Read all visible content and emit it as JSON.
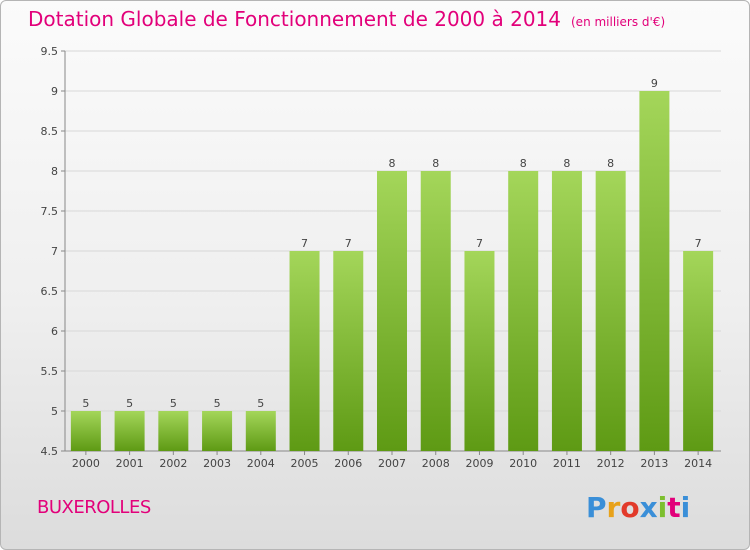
{
  "title": "Dotation Globale de Fonctionnement de 2000 à 2014",
  "unit": "(en milliers d'€)",
  "commune": "BUXEROLLES",
  "logo": {
    "text": "Proxiti",
    "letters": [
      "P",
      "r",
      "o",
      "x",
      "i",
      "t",
      "i"
    ],
    "colors": [
      "#3a8fd8",
      "#e8a21a",
      "#e23a2a",
      "#3a8fd8",
      "#7cbf2e",
      "#e2007a",
      "#3a8fd8"
    ]
  },
  "colors": {
    "title": "#e2007a",
    "bar_top": "#a4d65a",
    "bar_bottom": "#5e9a14",
    "grid": "#d8d8d8"
  },
  "chart_data": {
    "type": "bar",
    "categories": [
      "2000",
      "2001",
      "2002",
      "2003",
      "2004",
      "2005",
      "2006",
      "2007",
      "2008",
      "2009",
      "2010",
      "2011",
      "2012",
      "2013",
      "2014"
    ],
    "values": [
      5,
      5,
      5,
      5,
      5,
      7,
      7,
      8,
      8,
      7,
      8,
      8,
      8,
      9,
      7
    ],
    "data_labels": [
      "5",
      "5",
      "5",
      "5",
      "5",
      "7",
      "7",
      "8",
      "8",
      "7",
      "8",
      "8",
      "8",
      "9",
      "7"
    ],
    "yticks": [
      "4.5",
      "5",
      "5.5",
      "6",
      "6.5",
      "7",
      "7.5",
      "8",
      "8.5",
      "9",
      "9.5"
    ],
    "ylim": [
      4.5,
      9.5
    ],
    "grid": true,
    "legend": "none"
  }
}
